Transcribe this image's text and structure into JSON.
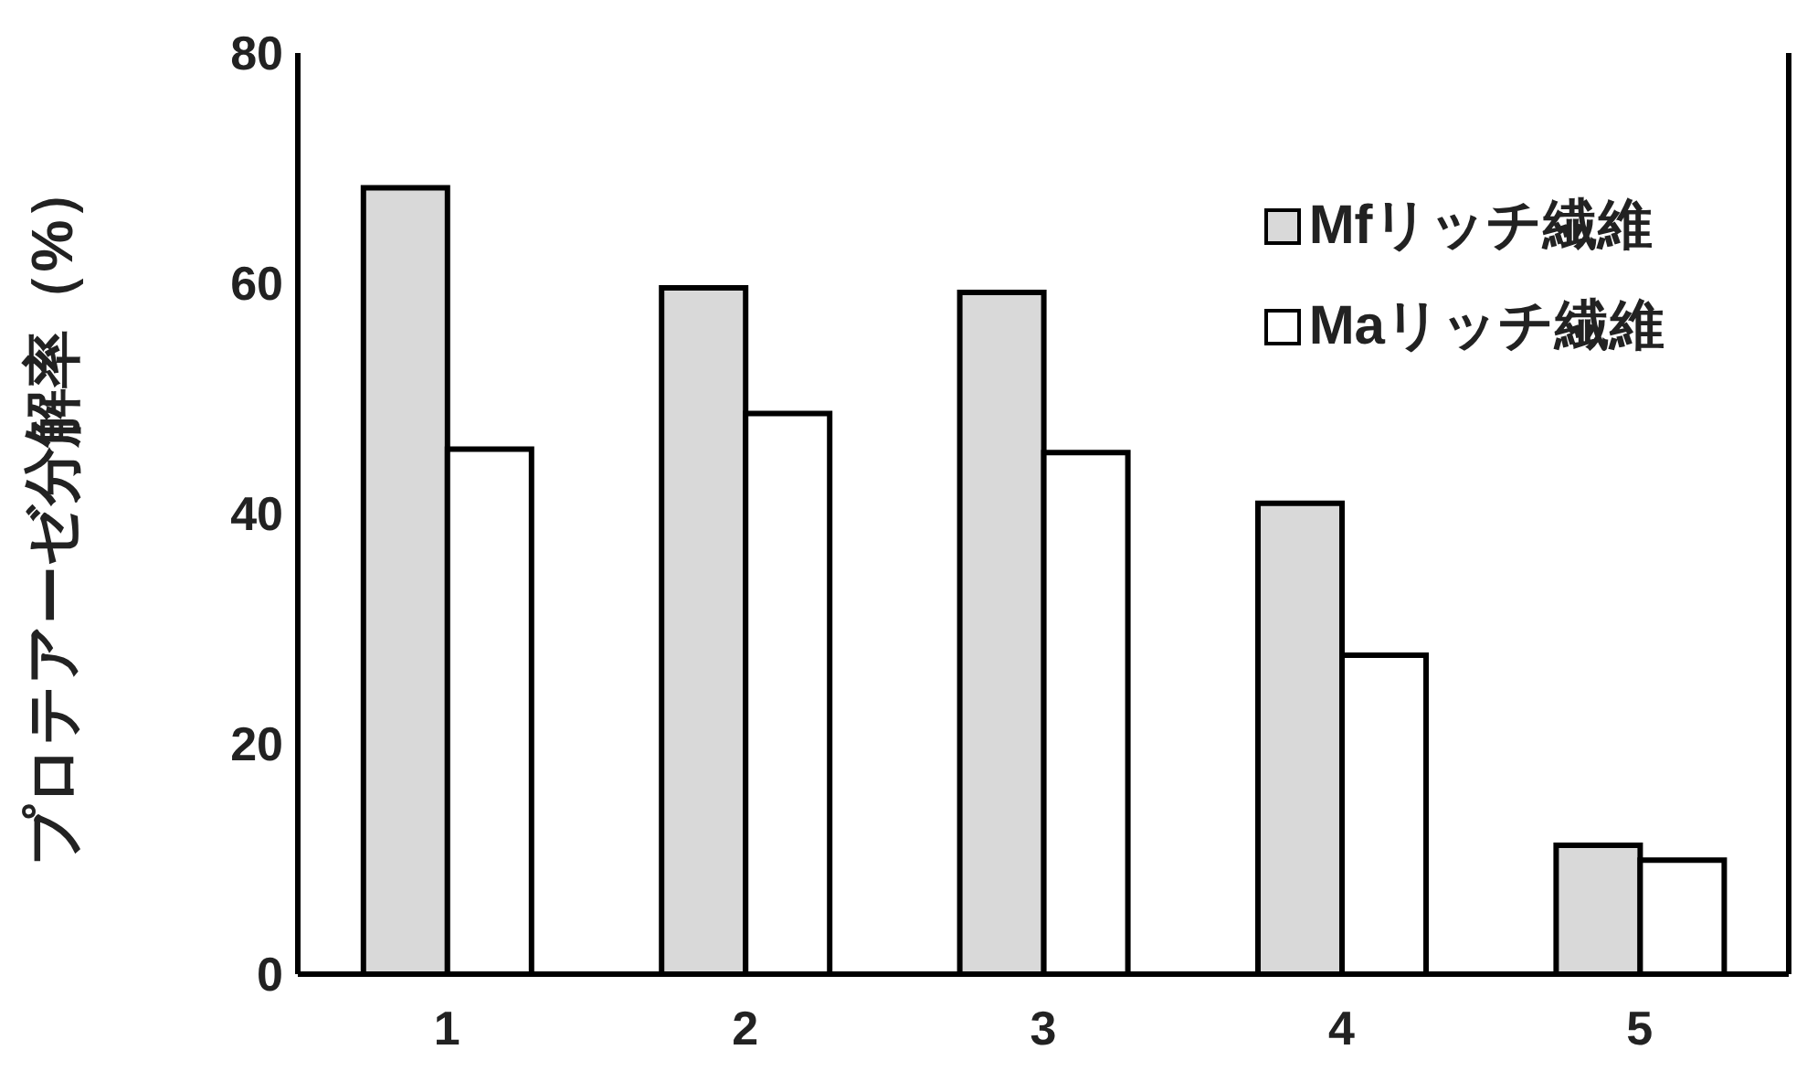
{
  "chart_data": {
    "type": "bar",
    "ylabel": "プロテアーゼ分解率（%）",
    "categories": [
      "1",
      "2",
      "3",
      "4",
      "5"
    ],
    "series": [
      {
        "name": "Mfリッチ繊維",
        "color": "#d9d9d9",
        "values": [
          68.3,
          59.6,
          59.2,
          40.9,
          11.2
        ]
      },
      {
        "name": "Maリッチ繊維",
        "color": "#ffffff",
        "values": [
          45.6,
          48.7,
          45.3,
          27.7,
          9.9
        ]
      }
    ],
    "ylim": [
      0,
      80
    ],
    "yticks": [
      0,
      20,
      40,
      60,
      80
    ],
    "legend": "top right"
  }
}
